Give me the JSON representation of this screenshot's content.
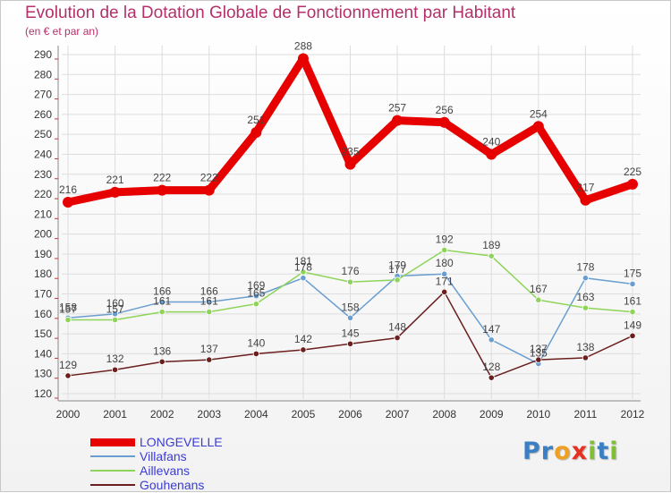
{
  "chart_data": {
    "type": "line",
    "title": "Evolution de la Dotation Globale de Fonctionnement par Habitant",
    "subtitle": "(en € et par an)",
    "xlabel": "",
    "ylabel": "",
    "categories": [
      "2000",
      "2001",
      "2002",
      "2003",
      "2004",
      "2005",
      "2006",
      "2007",
      "2008",
      "2009",
      "2010",
      "2011",
      "2012"
    ],
    "ylim": [
      120,
      290
    ],
    "yticks": [
      120,
      130,
      140,
      150,
      160,
      170,
      180,
      190,
      200,
      210,
      220,
      230,
      240,
      250,
      260,
      270,
      280,
      290
    ],
    "grid": true,
    "legend_position": "bottom-left",
    "series": [
      {
        "name": "LONGEVELLE",
        "color": "#e60000",
        "values": [
          216,
          221,
          222,
          222,
          251,
          288,
          235,
          257,
          256,
          240,
          254,
          217,
          225
        ]
      },
      {
        "name": "Villafans",
        "color": "#6a9ed0",
        "values": [
          158,
          160,
          166,
          166,
          169,
          178,
          158,
          179,
          180,
          147,
          135,
          178,
          175
        ]
      },
      {
        "name": "Aillevans",
        "color": "#8ed45b",
        "values": [
          157,
          157,
          161,
          161,
          165,
          181,
          176,
          177,
          192,
          189,
          167,
          163,
          161
        ]
      },
      {
        "name": "Gouhenans",
        "color": "#6b1e1e",
        "values": [
          129,
          132,
          136,
          137,
          140,
          142,
          145,
          148,
          171,
          128,
          137,
          138,
          149
        ]
      }
    ]
  },
  "colors": {
    "title": "#b4306a",
    "grid": "#dddddd",
    "axis": "#888888",
    "tick_text": "#333333",
    "label_text": "#444444"
  },
  "branding": {
    "letters": [
      "P",
      "r",
      "o",
      "x",
      "i",
      "t",
      "i"
    ],
    "letter_colors": [
      "#3a7fc4",
      "#3a7fc4",
      "#f0a020",
      "#e63020",
      "#7ec030",
      "#3a7fc4",
      "#7ec030"
    ]
  }
}
